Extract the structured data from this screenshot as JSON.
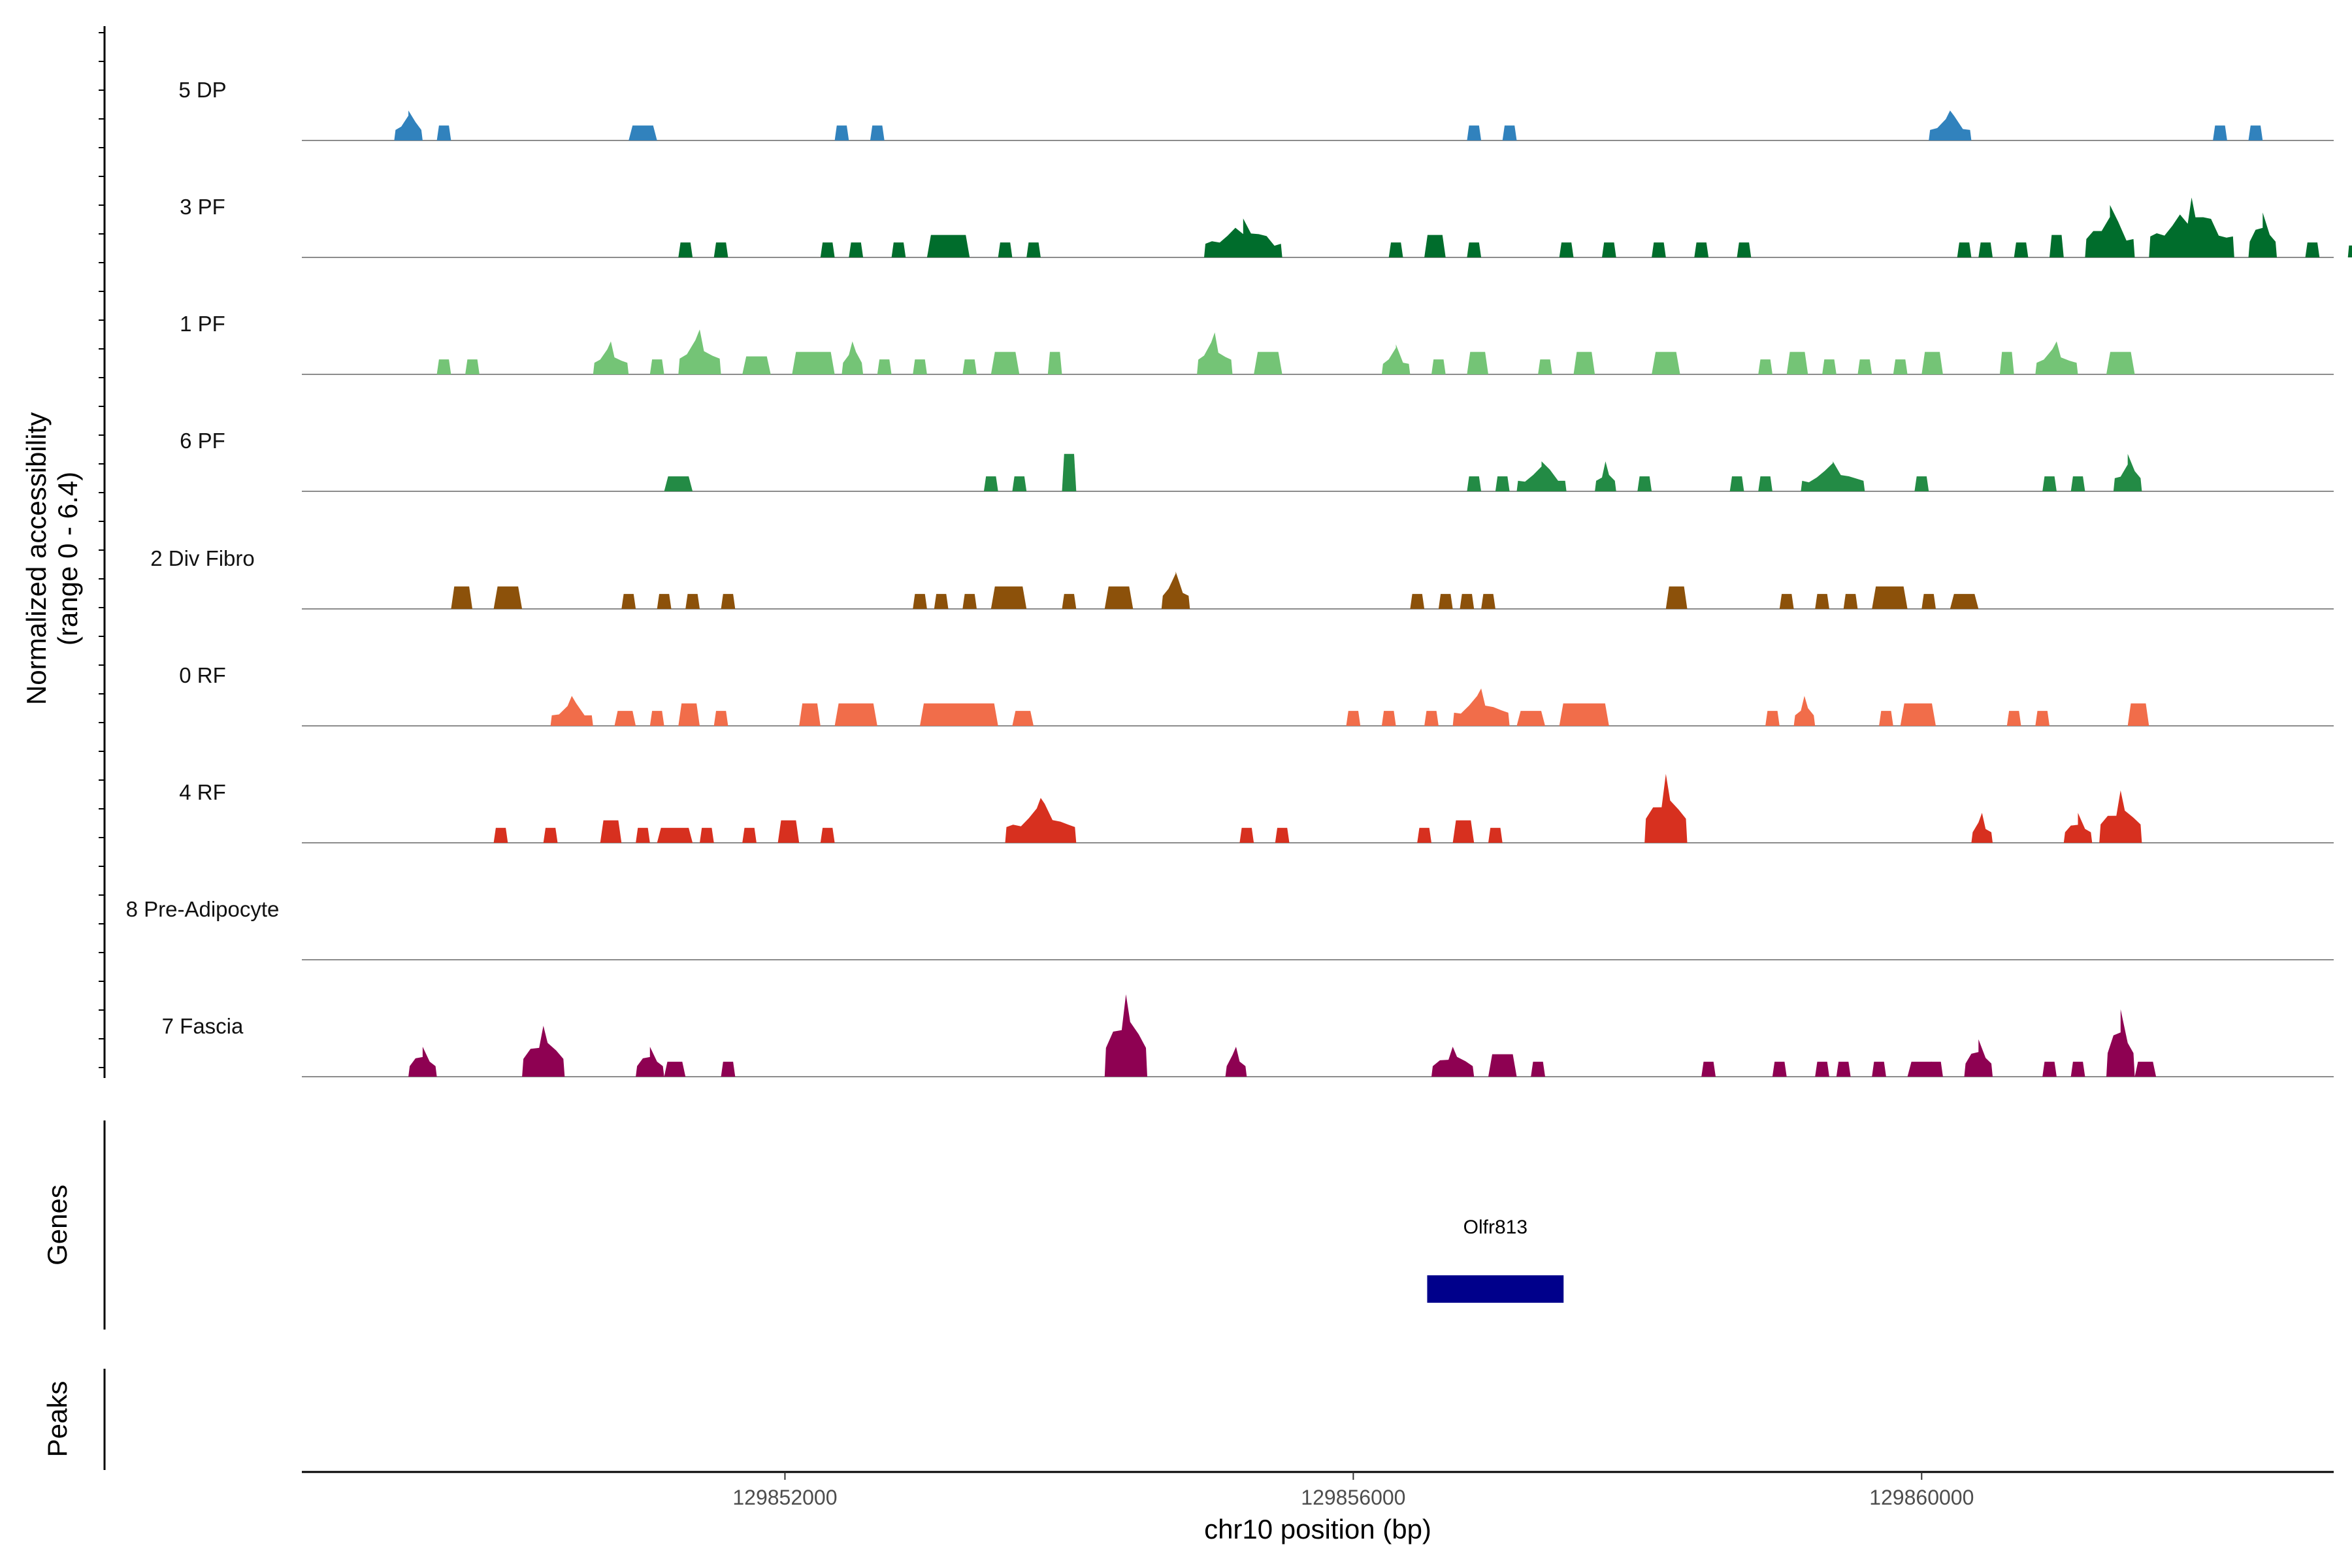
{
  "chart_data": {
    "type": "area",
    "chrom": "chr10",
    "xlabel": "chr10 position (bp)",
    "ylabel": "Normalized accessibility",
    "ylabel_range": "(range 0 - 6.4)",
    "ylim": [
      0,
      6.4
    ],
    "xlim": [
      129848600,
      129862900
    ],
    "xticks": [
      129852000,
      129856000,
      129860000
    ],
    "xtick_labels": [
      "129852000",
      "129856000",
      "129860000"
    ],
    "panels": {
      "genes_label": "Genes",
      "peaks_label": "Peaks"
    },
    "genes": [
      {
        "name": "Olfr813",
        "start": 129856520,
        "end": 129857480,
        "color": "#00008B"
      }
    ],
    "peaks": [],
    "tracks": [
      {
        "name": "5 DP",
        "color": "#3182BD",
        "peaks": [
          [
            129849250,
            129849450,
            2.0
          ],
          [
            129849550,
            129849650,
            1.0
          ],
          [
            129850900,
            129851100,
            1.0
          ],
          [
            129852350,
            129852450,
            1.0
          ],
          [
            129852600,
            129852700,
            1.0
          ],
          [
            129856800,
            129856900,
            1.0
          ],
          [
            129857050,
            129857150,
            1.0
          ],
          [
            129860050,
            129860350,
            2.0
          ],
          [
            129862050,
            129862150,
            1.0
          ],
          [
            129862300,
            129862400,
            1.0
          ]
        ]
      },
      {
        "name": "3 PF",
        "color": "#006D2C",
        "peaks": [
          [
            129851250,
            129851350,
            1.0
          ],
          [
            129851500,
            129851600,
            1.0
          ],
          [
            129852250,
            129852350,
            1.0
          ],
          [
            129852450,
            129852550,
            1.0
          ],
          [
            129852750,
            129852850,
            1.0
          ],
          [
            129853000,
            129853300,
            1.5
          ],
          [
            129853500,
            129853600,
            1.0
          ],
          [
            129853700,
            129853800,
            1.0
          ],
          [
            129854950,
            129855500,
            2.6
          ],
          [
            129856250,
            129856350,
            1.0
          ],
          [
            129856500,
            129856650,
            1.5
          ],
          [
            129856800,
            129856900,
            1.0
          ],
          [
            129857450,
            129857550,
            1.0
          ],
          [
            129857750,
            129857850,
            1.0
          ],
          [
            129858100,
            129858200,
            1.0
          ],
          [
            129858400,
            129858500,
            1.0
          ],
          [
            129858700,
            129858800,
            1.0
          ],
          [
            129860250,
            129860350,
            1.0
          ],
          [
            129860400,
            129860500,
            1.0
          ],
          [
            129860650,
            129860750,
            1.0
          ],
          [
            129860900,
            129861000,
            1.5
          ],
          [
            129861150,
            129861500,
            3.5
          ],
          [
            129861600,
            129862200,
            4.0
          ],
          [
            129862300,
            129862500,
            3.0
          ],
          [
            129862700,
            129862800,
            1.0
          ],
          [
            129863000,
            129863050,
            0.8
          ]
        ]
      },
      {
        "name": "1 PF",
        "color": "#74C476",
        "peaks": [
          [
            129849550,
            129849650,
            1.0
          ],
          [
            129849750,
            129849850,
            1.0
          ],
          [
            129850650,
            129850900,
            2.2
          ],
          [
            129851050,
            129851150,
            1.0
          ],
          [
            129851250,
            129851550,
            3.0
          ],
          [
            129851700,
            129851900,
            1.2
          ],
          [
            129852050,
            129852350,
            1.5
          ],
          [
            129852400,
            129852550,
            2.2
          ],
          [
            129852650,
            129852750,
            1.0
          ],
          [
            129852900,
            129853000,
            1.0
          ],
          [
            129853250,
            129853350,
            1.0
          ],
          [
            129853450,
            129853650,
            1.5
          ],
          [
            129853850,
            129853950,
            1.5
          ],
          [
            129854900,
            129855150,
            2.8
          ],
          [
            129855300,
            129855500,
            1.5
          ],
          [
            129856200,
            129856400,
            2.0
          ],
          [
            129856550,
            129856650,
            1.0
          ],
          [
            129856800,
            129856950,
            1.5
          ],
          [
            129857300,
            129857400,
            1.0
          ],
          [
            129857550,
            129857700,
            1.5
          ],
          [
            129858100,
            129858300,
            1.5
          ],
          [
            129858850,
            129858950,
            1.0
          ],
          [
            129859050,
            129859200,
            1.5
          ],
          [
            129859300,
            129859400,
            1.0
          ],
          [
            129859550,
            129859650,
            1.0
          ],
          [
            129859800,
            129859900,
            1.0
          ],
          [
            129860000,
            129860150,
            1.5
          ],
          [
            129860550,
            129860650,
            1.5
          ],
          [
            129860800,
            129861100,
            2.2
          ],
          [
            129861300,
            129861500,
            1.5
          ]
        ]
      },
      {
        "name": "6 PF",
        "color": "#238B45",
        "peaks": [
          [
            129851150,
            129851350,
            1.0
          ],
          [
            129853400,
            129853500,
            1.0
          ],
          [
            129853600,
            129853700,
            1.0
          ],
          [
            129853950,
            129854050,
            2.5
          ],
          [
            129856800,
            129856900,
            1.0
          ],
          [
            129857000,
            129857100,
            1.0
          ],
          [
            129857150,
            129857500,
            2.0
          ],
          [
            129857700,
            129857850,
            2.0
          ],
          [
            129858000,
            129858100,
            1.0
          ],
          [
            129858650,
            129858750,
            1.0
          ],
          [
            129858850,
            129858950,
            1.0
          ],
          [
            129859150,
            129859600,
            2.0
          ],
          [
            129859950,
            129860050,
            1.0
          ],
          [
            129860850,
            129860950,
            1.0
          ],
          [
            129861050,
            129861150,
            1.0
          ],
          [
            129861350,
            129861550,
            2.5
          ]
        ]
      },
      {
        "name": "2 Div Fibro",
        "color": "#8C510A",
        "peaks": [
          [
            129849650,
            129849800,
            1.5
          ],
          [
            129849950,
            129850150,
            1.5
          ],
          [
            129850850,
            129850950,
            1.0
          ],
          [
            129851100,
            129851200,
            1.0
          ],
          [
            129851300,
            129851400,
            1.0
          ],
          [
            129851550,
            129851650,
            1.0
          ],
          [
            129852900,
            129853000,
            1.0
          ],
          [
            129853050,
            129853150,
            1.0
          ],
          [
            129853250,
            129853350,
            1.0
          ],
          [
            129853450,
            129853700,
            1.5
          ],
          [
            129853950,
            129854050,
            1.0
          ],
          [
            129854250,
            129854450,
            1.5
          ],
          [
            129854650,
            129854850,
            2.5
          ],
          [
            129856400,
            129856500,
            1.0
          ],
          [
            129856600,
            129856700,
            1.0
          ],
          [
            129856750,
            129856850,
            1.0
          ],
          [
            129856900,
            129857000,
            1.0
          ],
          [
            129858200,
            129858350,
            1.5
          ],
          [
            129859000,
            129859100,
            1.0
          ],
          [
            129859250,
            129859350,
            1.0
          ],
          [
            129859450,
            129859550,
            1.0
          ],
          [
            129859650,
            129859900,
            1.5
          ],
          [
            129860000,
            129860100,
            1.0
          ],
          [
            129860200,
            129860400,
            1.0
          ]
        ]
      },
      {
        "name": "0 RF",
        "color": "#F16D4A",
        "peaks": [
          [
            129850350,
            129850650,
            2.0
          ],
          [
            129850800,
            129850950,
            1.0
          ],
          [
            129851050,
            129851150,
            1.0
          ],
          [
            129851250,
            129851400,
            1.5
          ],
          [
            129851500,
            129851600,
            1.0
          ],
          [
            129852100,
            129852250,
            1.5
          ],
          [
            129852350,
            129852650,
            1.5
          ],
          [
            129852950,
            129853500,
            1.5
          ],
          [
            129853600,
            129853750,
            1.0
          ],
          [
            129855950,
            129856050,
            1.0
          ],
          [
            129856200,
            129856300,
            1.0
          ],
          [
            129856500,
            129856600,
            1.0
          ],
          [
            129856700,
            129857100,
            2.5
          ],
          [
            129857150,
            129857350,
            1.0
          ],
          [
            129857450,
            129857800,
            1.5
          ],
          [
            129858900,
            129859000,
            1.0
          ],
          [
            129859100,
            129859250,
            2.0
          ],
          [
            129859700,
            129859800,
            1.0
          ],
          [
            129859850,
            129860100,
            1.5
          ],
          [
            129860600,
            129860700,
            1.0
          ],
          [
            129860800,
            129860900,
            1.0
          ],
          [
            129861450,
            129861600,
            1.5
          ]
        ]
      },
      {
        "name": "4 RF",
        "color": "#D7301F",
        "peaks": [
          [
            129849950,
            129850050,
            1.0
          ],
          [
            129850300,
            129850400,
            1.0
          ],
          [
            129850700,
            129850850,
            1.5
          ],
          [
            129850950,
            129851050,
            1.0
          ],
          [
            129851100,
            129851350,
            1.0
          ],
          [
            129851400,
            129851500,
            1.0
          ],
          [
            129851700,
            129851800,
            1.0
          ],
          [
            129851950,
            129852100,
            1.5
          ],
          [
            129852250,
            129852350,
            1.0
          ],
          [
            129853550,
            129854050,
            3.0
          ],
          [
            129855200,
            129855300,
            1.0
          ],
          [
            129855450,
            129855550,
            1.0
          ],
          [
            129856450,
            129856550,
            1.0
          ],
          [
            129856700,
            129856850,
            1.5
          ],
          [
            129856950,
            129857050,
            1.0
          ],
          [
            129858050,
            129858350,
            4.6
          ],
          [
            129860350,
            129860500,
            2.0
          ],
          [
            129861000,
            129861200,
            2.0
          ],
          [
            129861250,
            129861550,
            3.5
          ]
        ]
      },
      {
        "name": "8 Pre-Adipocyte",
        "color": "#6A51A3",
        "peaks": []
      },
      {
        "name": "7 Fascia",
        "color": "#8E0152",
        "peaks": [
          [
            129849350,
            129849550,
            2.0
          ],
          [
            129850150,
            129850450,
            3.4
          ],
          [
            129850950,
            129851150,
            2.0
          ],
          [
            129851150,
            129851300,
            1.0
          ],
          [
            129851550,
            129851650,
            1.0
          ],
          [
            129854250,
            129854550,
            5.5
          ],
          [
            129855100,
            129855250,
            2.0
          ],
          [
            129856550,
            129856850,
            2.0
          ],
          [
            129856950,
            129857150,
            1.5
          ],
          [
            129857250,
            129857350,
            1.0
          ],
          [
            129858450,
            129858550,
            1.0
          ],
          [
            129858950,
            129859050,
            1.0
          ],
          [
            129859250,
            129859350,
            1.0
          ],
          [
            129859400,
            129859500,
            1.0
          ],
          [
            129859650,
            129859750,
            1.0
          ],
          [
            129859900,
            129860100,
            1.0
          ],
          [
            129860050,
            129860150,
            1.0
          ],
          [
            129860300,
            129860500,
            2.5
          ],
          [
            129860850,
            129860950,
            1.0
          ],
          [
            129861050,
            129861150,
            1.0
          ],
          [
            129861300,
            129861500,
            4.5
          ],
          [
            129861500,
            129861650,
            1.0
          ]
        ]
      }
    ]
  }
}
